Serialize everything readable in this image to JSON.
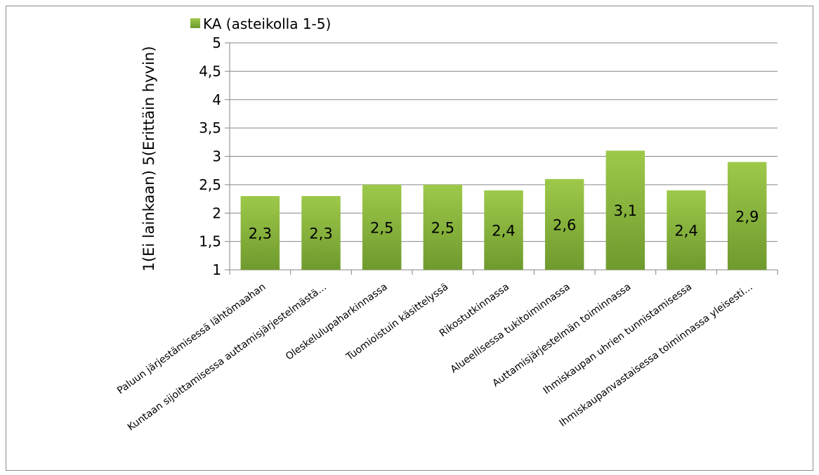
{
  "chart_data": {
    "type": "bar",
    "categories": [
      "Paluun järjestämisessä lähtömaahan",
      "Kuntaan sijoittamisessa auttamisjärjestelmästä…",
      "Oleskelulupaharkinnassa",
      "Tuomioistuin käsittelyssä",
      "Rikostutkinnassa",
      "Alueellisessa tukitoiminnassa",
      "Auttamisjärjestelmän toiminnassa",
      "Ihmiskaupan uhrien tunnistamisessa",
      "Ihmiskaupanvastaisessa toiminnassa yleisesti…"
    ],
    "series": [
      {
        "name": "KA (asteikolla 1-5)",
        "values": [
          2.3,
          2.3,
          2.5,
          2.5,
          2.4,
          2.6,
          3.1,
          2.4,
          2.9
        ],
        "data_labels": [
          "2,3",
          "2,3",
          "2,5",
          "2,5",
          "2,4",
          "2,6",
          "3,1",
          "2,4",
          "2,9"
        ]
      }
    ],
    "ylabel": "1(Ei lainkaan) 5(Erittäin hyvin)",
    "xlabel": "",
    "ylim": [
      1,
      5
    ],
    "yticks": [
      1,
      1.5,
      2,
      2.5,
      3,
      3.5,
      4,
      4.5,
      5
    ],
    "ytick_labels": [
      "1",
      "1,5",
      "2",
      "2,5",
      "3",
      "3,5",
      "4",
      "4,5",
      "5"
    ],
    "grid": true,
    "legend_position": "top-left",
    "colors": {
      "bar_top": "#9dc94a",
      "bar_bottom": "#6f9a2e",
      "grid": "#868686"
    }
  }
}
